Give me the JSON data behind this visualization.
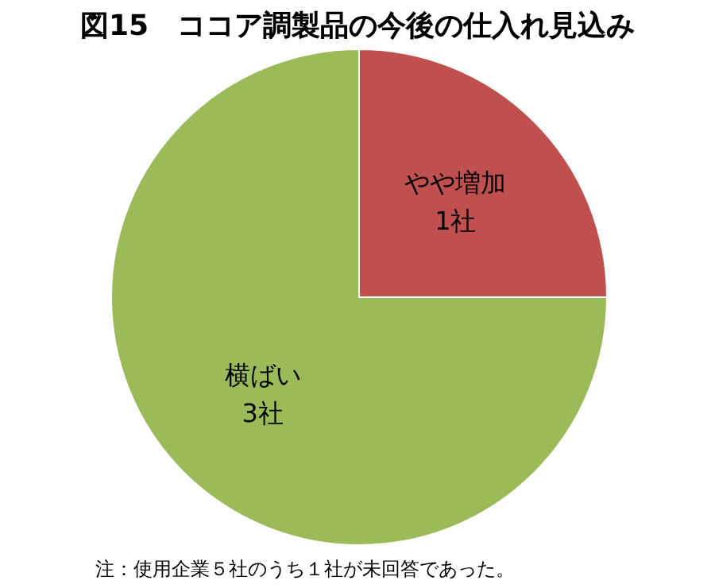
{
  "chart_data": {
    "type": "pie",
    "title": "図15　ココア調製品の今後の仕入れ見込み",
    "categories": [
      "やや増加",
      "横ばい"
    ],
    "values": [
      1,
      3
    ],
    "colors": [
      "#c0504d",
      "#9bbb59"
    ],
    "value_labels": [
      "1社",
      "3社"
    ],
    "annotations": [
      "注：使用企業５社のうち１社が未回答であった。"
    ]
  }
}
